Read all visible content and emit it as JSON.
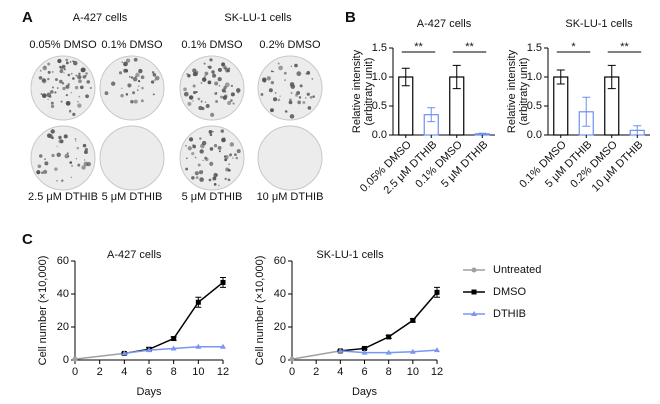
{
  "panel_labels": [
    "A",
    "B",
    "C"
  ],
  "panel_a": {
    "groups": [
      "A-427 cells",
      "SK-LU-1 cells"
    ],
    "top_labels": [
      "0.05% DMSO",
      "0.1% DMSO",
      "0.1% DMSO",
      "0.2% DMSO"
    ],
    "bottom_labels": [
      "2.5 μM DTHIB",
      "5 μM DTHIB",
      "5 μM DTHIB",
      "10 μM DTHIB"
    ]
  },
  "chart_data": [
    {
      "type": "bar",
      "title": "A-427 cells",
      "ylabel": [
        "Relative intensity",
        "(arbitraty unit)"
      ],
      "categories": [
        "0.05% DMSO",
        "2.5 μM DTHIB",
        "0.1% DMSO",
        "5 μM DTHIB"
      ],
      "values": [
        1.0,
        0.35,
        1.0,
        0.02
      ],
      "errors": [
        0.15,
        0.12,
        0.2,
        0.01
      ],
      "colors": [
        "#000000",
        "#6f8ff0",
        "#000000",
        "#6f8ff0"
      ],
      "annotations": [
        "**",
        "**"
      ],
      "ylim": [
        0,
        1.5
      ],
      "yticks": [
        {
          "value": 0,
          "label": "0.0"
        },
        0.5,
        {
          "value": 1,
          "label": "1.0"
        },
        1.5
      ]
    },
    {
      "type": "bar",
      "title": "SK-LU-1 cells",
      "ylabel": [
        "Relative intensity",
        "(arbitraty unit)"
      ],
      "categories": [
        "0.1% DMSO",
        "5 μM DTHIB",
        "0.2% DMSO",
        "10 μM DTHIB"
      ],
      "values": [
        1.0,
        0.4,
        1.0,
        0.08
      ],
      "errors": [
        0.12,
        0.25,
        0.2,
        0.08
      ],
      "colors": [
        "#000000",
        "#6f8ff0",
        "#000000",
        "#6f8ff0"
      ],
      "annotations": [
        "*",
        "**"
      ],
      "ylim": [
        0,
        1.5
      ],
      "yticks": [
        {
          "value": 0,
          "label": "0.0"
        },
        0.5,
        {
          "value": 1,
          "label": "1.0"
        },
        1.5
      ]
    },
    {
      "type": "line",
      "title": "A-427 cells",
      "xlabel": "Days",
      "ylabel": "Cell number (×10,000)",
      "x": [
        0,
        4,
        6,
        8,
        10,
        12
      ],
      "series": [
        {
          "color": "#a0a0a0",
          "values": [
            0.5,
            4,
            null,
            null,
            null,
            null
          ]
        },
        {
          "color": "#000000",
          "values": [
            null,
            4,
            6.5,
            13,
            35,
            47
          ],
          "errors": [
            null,
            0.5,
            1,
            1,
            3,
            3
          ]
        },
        {
          "color": "#7b96f0",
          "values": [
            null,
            4,
            6,
            7,
            8,
            8
          ]
        }
      ],
      "xlim": [
        0,
        12
      ],
      "xticks": [
        0,
        2,
        4,
        6,
        8,
        10,
        12
      ],
      "ylim": [
        0,
        60
      ],
      "yticks": [
        0,
        20,
        40,
        60
      ]
    },
    {
      "type": "line",
      "title": "SK-LU-1 cells",
      "xlabel": "Days",
      "ylabel": "Cell number (×10,000)",
      "x": [
        0,
        4,
        6,
        8,
        10,
        12
      ],
      "series": [
        {
          "name": "Untreated",
          "color": "#a0a0a0",
          "values": [
            0.5,
            5.5,
            null,
            null,
            null,
            null
          ]
        },
        {
          "name": "DMSO",
          "color": "#000000",
          "values": [
            null,
            5.5,
            7,
            14,
            24,
            41
          ],
          "errors": [
            null,
            0.5,
            0.5,
            1,
            1,
            3
          ]
        },
        {
          "name": "DTHIB",
          "color": "#7b96f0",
          "values": [
            null,
            5.5,
            4.5,
            4.5,
            5,
            6
          ]
        }
      ],
      "legend": "right",
      "xlim": [
        0,
        12
      ],
      "xticks": [
        0,
        2,
        4,
        6,
        8,
        10,
        12
      ],
      "ylim": [
        0,
        60
      ],
      "yticks": [
        0,
        20,
        40,
        60
      ]
    }
  ]
}
